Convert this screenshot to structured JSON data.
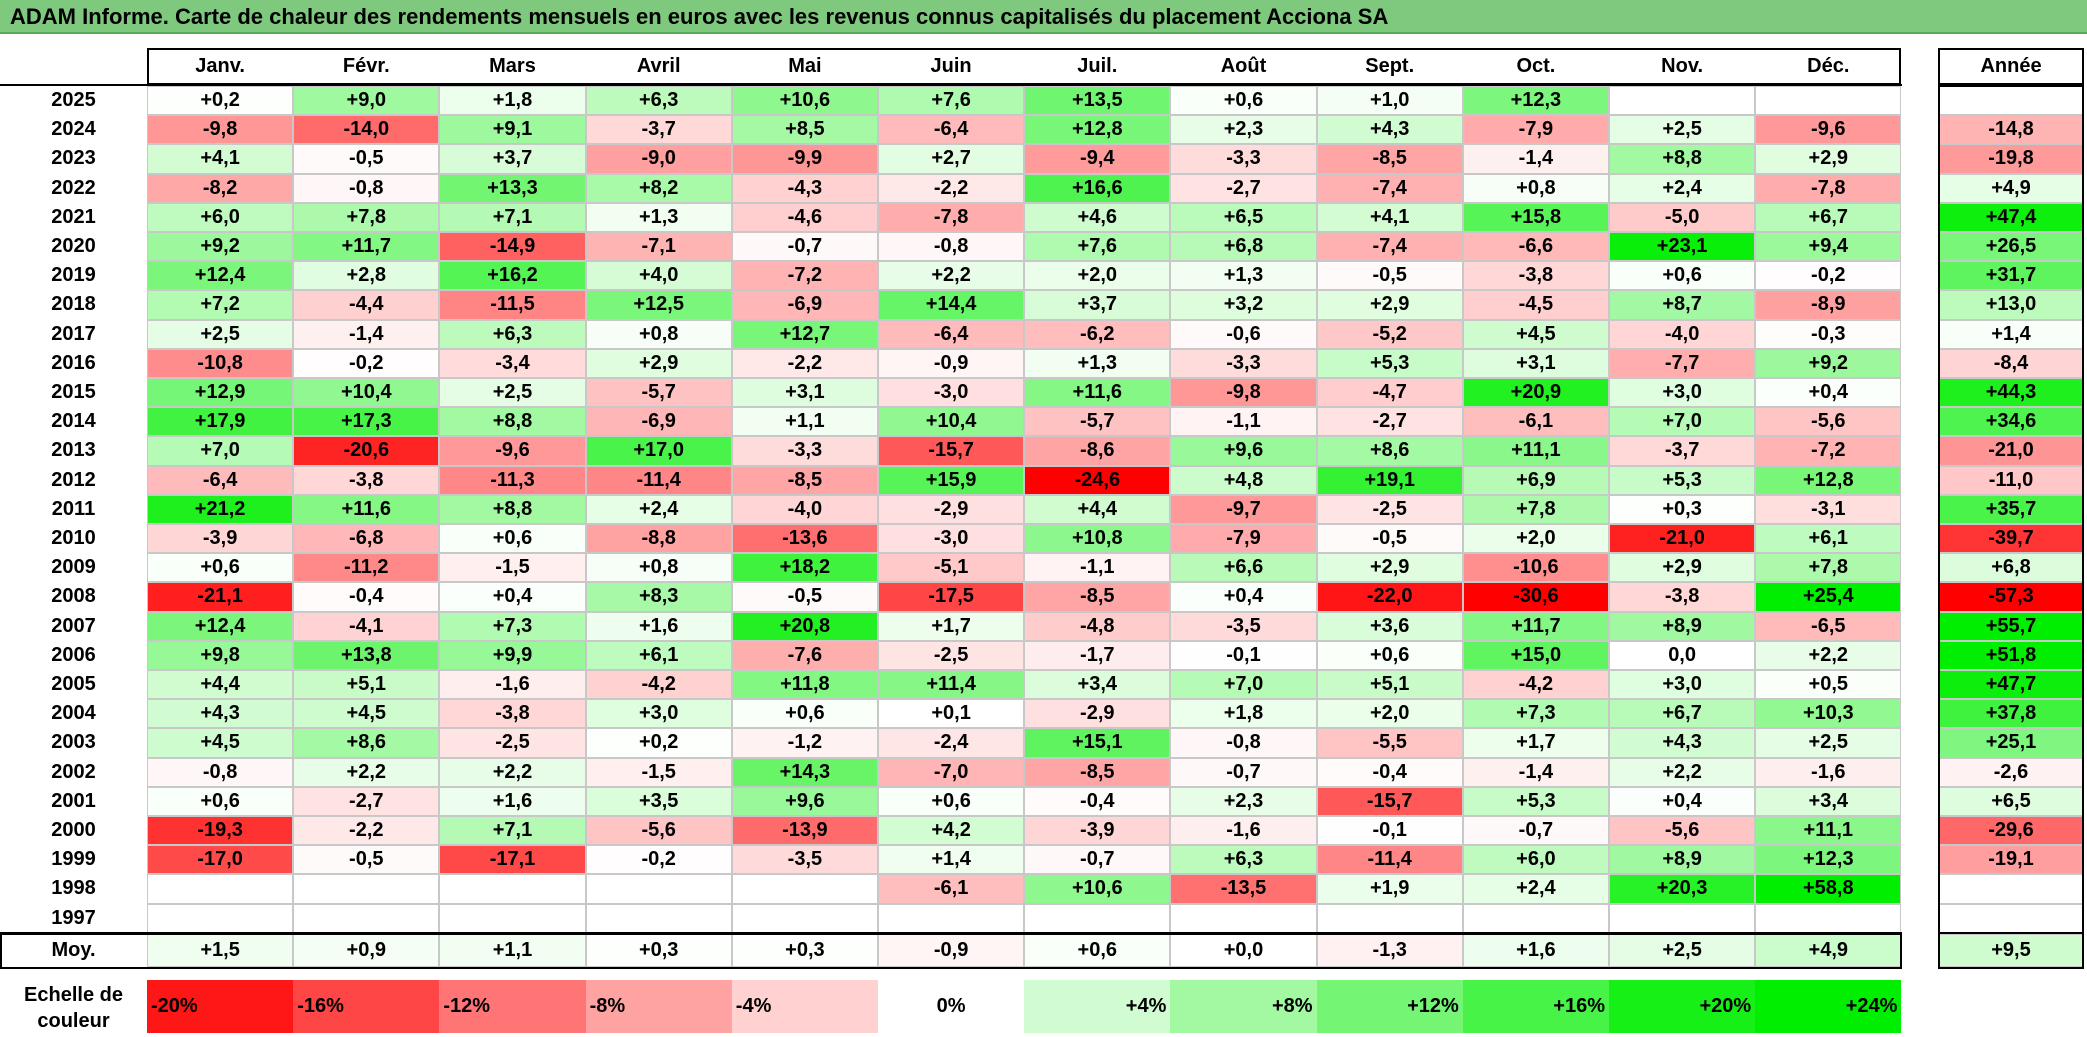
{
  "title": "ADAM Informe. Carte de chaleur des rendements mensuels en euros avec les revenus connus capitalisés du placement Acciona SA",
  "chart_data": {
    "type": "heatmap",
    "title": "ADAM Informe. Carte de chaleur des rendements mensuels en euros avec les revenus connus capitalisés du placement Acciona SA",
    "months": [
      "Janv.",
      "Févr.",
      "Mars",
      "Avril",
      "Mai",
      "Juin",
      "Juil.",
      "Août",
      "Sept.",
      "Oct.",
      "Nov.",
      "Déc."
    ],
    "annual_label": "Année",
    "rows": [
      {
        "year": "2025",
        "values": [
          "+0,2",
          "+9,0",
          "+1,8",
          "+6,3",
          "+10,6",
          "+7,6",
          "+13,5",
          "+0,6",
          "+1,0",
          "+12,3",
          "",
          ""
        ],
        "annual": ""
      },
      {
        "year": "2024",
        "values": [
          "-9,8",
          "-14,0",
          "+9,1",
          "-3,7",
          "+8,5",
          "-6,4",
          "+12,8",
          "+2,3",
          "+4,3",
          "-7,9",
          "+2,5",
          "-9,6"
        ],
        "annual": "-14,8"
      },
      {
        "year": "2023",
        "values": [
          "+4,1",
          "-0,5",
          "+3,7",
          "-9,0",
          "-9,9",
          "+2,7",
          "-9,4",
          "-3,3",
          "-8,5",
          "-1,4",
          "+8,8",
          "+2,9"
        ],
        "annual": "-19,8"
      },
      {
        "year": "2022",
        "values": [
          "-8,2",
          "-0,8",
          "+13,3",
          "+8,2",
          "-4,3",
          "-2,2",
          "+16,6",
          "-2,7",
          "-7,4",
          "+0,8",
          "+2,4",
          "-7,8"
        ],
        "annual": "+4,9"
      },
      {
        "year": "2021",
        "values": [
          "+6,0",
          "+7,8",
          "+7,1",
          "+1,3",
          "-4,6",
          "-7,8",
          "+4,6",
          "+6,5",
          "+4,1",
          "+15,8",
          "-5,0",
          "+6,7"
        ],
        "annual": "+47,4"
      },
      {
        "year": "2020",
        "values": [
          "+9,2",
          "+11,7",
          "-14,9",
          "-7,1",
          "-0,7",
          "-0,8",
          "+7,6",
          "+6,8",
          "-7,4",
          "-6,6",
          "+23,1",
          "+9,4"
        ],
        "annual": "+26,5"
      },
      {
        "year": "2019",
        "values": [
          "+12,4",
          "+2,8",
          "+16,2",
          "+4,0",
          "-7,2",
          "+2,2",
          "+2,0",
          "+1,3",
          "-0,5",
          "-3,8",
          "+0,6",
          "-0,2"
        ],
        "annual": "+31,7"
      },
      {
        "year": "2018",
        "values": [
          "+7,2",
          "-4,4",
          "-11,5",
          "+12,5",
          "-6,9",
          "+14,4",
          "+3,7",
          "+3,2",
          "+2,9",
          "-4,5",
          "+8,7",
          "-8,9"
        ],
        "annual": "+13,0"
      },
      {
        "year": "2017",
        "values": [
          "+2,5",
          "-1,4",
          "+6,3",
          "+0,8",
          "+12,7",
          "-6,4",
          "-6,2",
          "-0,6",
          "-5,2",
          "+4,5",
          "-4,0",
          "-0,3"
        ],
        "annual": "+1,4"
      },
      {
        "year": "2016",
        "values": [
          "-10,8",
          "-0,2",
          "-3,4",
          "+2,9",
          "-2,2",
          "-0,9",
          "+1,3",
          "-3,3",
          "+5,3",
          "+3,1",
          "-7,7",
          "+9,2"
        ],
        "annual": "-8,4"
      },
      {
        "year": "2015",
        "values": [
          "+12,9",
          "+10,4",
          "+2,5",
          "-5,7",
          "+3,1",
          "-3,0",
          "+11,6",
          "-9,8",
          "-4,7",
          "+20,9",
          "+3,0",
          "+0,4"
        ],
        "annual": "+44,3"
      },
      {
        "year": "2014",
        "values": [
          "+17,9",
          "+17,3",
          "+8,8",
          "-6,9",
          "+1,1",
          "+10,4",
          "-5,7",
          "-1,1",
          "-2,7",
          "-6,1",
          "+7,0",
          "-5,6"
        ],
        "annual": "+34,6"
      },
      {
        "year": "2013",
        "values": [
          "+7,0",
          "-20,6",
          "-9,6",
          "+17,0",
          "-3,3",
          "-15,7",
          "-8,6",
          "+9,6",
          "+8,6",
          "+11,1",
          "-3,7",
          "-7,2"
        ],
        "annual": "-21,0"
      },
      {
        "year": "2012",
        "values": [
          "-6,4",
          "-3,8",
          "-11,3",
          "-11,4",
          "-8,5",
          "+15,9",
          "-24,6",
          "+4,8",
          "+19,1",
          "+6,9",
          "+5,3",
          "+12,8"
        ],
        "annual": "-11,0"
      },
      {
        "year": "2011",
        "values": [
          "+21,2",
          "+11,6",
          "+8,8",
          "+2,4",
          "-4,0",
          "-2,9",
          "+4,4",
          "-9,7",
          "-2,5",
          "+7,8",
          "+0,3",
          "-3,1"
        ],
        "annual": "+35,7"
      },
      {
        "year": "2010",
        "values": [
          "-3,9",
          "-6,8",
          "+0,6",
          "-8,8",
          "-13,6",
          "-3,0",
          "+10,8",
          "-7,9",
          "-0,5",
          "+2,0",
          "-21,0",
          "+6,1"
        ],
        "annual": "-39,7"
      },
      {
        "year": "2009",
        "values": [
          "+0,6",
          "-11,2",
          "-1,5",
          "+0,8",
          "+18,2",
          "-5,1",
          "-1,1",
          "+6,6",
          "+2,9",
          "-10,6",
          "+2,9",
          "+7,8"
        ],
        "annual": "+6,8"
      },
      {
        "year": "2008",
        "values": [
          "-21,1",
          "-0,4",
          "+0,4",
          "+8,3",
          "-0,5",
          "-17,5",
          "-8,5",
          "+0,4",
          "-22,0",
          "-30,6",
          "-3,8",
          "+25,4"
        ],
        "annual": "-57,3"
      },
      {
        "year": "2007",
        "values": [
          "+12,4",
          "-4,1",
          "+7,3",
          "+1,6",
          "+20,8",
          "+1,7",
          "-4,8",
          "-3,5",
          "+3,6",
          "+11,7",
          "+8,9",
          "-6,5"
        ],
        "annual": "+55,7"
      },
      {
        "year": "2006",
        "values": [
          "+9,8",
          "+13,8",
          "+9,9",
          "+6,1",
          "-7,6",
          "-2,5",
          "-1,7",
          "-0,1",
          "+0,6",
          "+15,0",
          "0,0",
          "+2,2"
        ],
        "annual": "+51,8"
      },
      {
        "year": "2005",
        "values": [
          "+4,4",
          "+5,1",
          "-1,6",
          "-4,2",
          "+11,8",
          "+11,4",
          "+3,4",
          "+7,0",
          "+5,1",
          "-4,2",
          "+3,0",
          "+0,5"
        ],
        "annual": "+47,7"
      },
      {
        "year": "2004",
        "values": [
          "+4,3",
          "+4,5",
          "-3,8",
          "+3,0",
          "+0,6",
          "+0,1",
          "-2,9",
          "+1,8",
          "+2,0",
          "+7,3",
          "+6,7",
          "+10,3"
        ],
        "annual": "+37,8"
      },
      {
        "year": "2003",
        "values": [
          "+4,5",
          "+8,6",
          "-2,5",
          "+0,2",
          "-1,2",
          "-2,4",
          "+15,1",
          "-0,8",
          "-5,5",
          "+1,7",
          "+4,3",
          "+2,5"
        ],
        "annual": "+25,1"
      },
      {
        "year": "2002",
        "values": [
          "-0,8",
          "+2,2",
          "+2,2",
          "-1,5",
          "+14,3",
          "-7,0",
          "-8,5",
          "-0,7",
          "-0,4",
          "-1,4",
          "+2,2",
          "-1,6"
        ],
        "annual": "-2,6"
      },
      {
        "year": "2001",
        "values": [
          "+0,6",
          "-2,7",
          "+1,6",
          "+3,5",
          "+9,6",
          "+0,6",
          "-0,4",
          "+2,3",
          "-15,7",
          "+5,3",
          "+0,4",
          "+3,4"
        ],
        "annual": "+6,5"
      },
      {
        "year": "2000",
        "values": [
          "-19,3",
          "-2,2",
          "+7,1",
          "-5,6",
          "-13,9",
          "+4,2",
          "-3,9",
          "-1,6",
          "-0,1",
          "-0,7",
          "-5,6",
          "+11,1"
        ],
        "annual": "-29,6"
      },
      {
        "year": "1999",
        "values": [
          "-17,0",
          "-0,5",
          "-17,1",
          "-0,2",
          "-3,5",
          "+1,4",
          "-0,7",
          "+6,3",
          "-11,4",
          "+6,0",
          "+8,9",
          "+12,3"
        ],
        "annual": "-19,1"
      },
      {
        "year": "1998",
        "values": [
          "",
          "",
          "",
          "",
          "",
          "-6,1",
          "+10,6",
          "-13,5",
          "+1,9",
          "+2,4",
          "+20,3",
          "+58,8"
        ],
        "annual": ""
      },
      {
        "year": "1997",
        "values": [
          "",
          "",
          "",
          "",
          "",
          "",
          "",
          "",
          "",
          "",
          "",
          ""
        ],
        "annual": ""
      }
    ],
    "average": {
      "label": "Moy.",
      "values": [
        "+1,5",
        "+0,9",
        "+1,1",
        "+0,3",
        "+0,3",
        "-0,9",
        "+0,6",
        "+0,0",
        "-1,3",
        "+1,6",
        "+2,5",
        "+4,9"
      ],
      "annual": "+9,5"
    },
    "scale": {
      "label_line1": "Echelle de",
      "label_line2": "couleur",
      "steps": [
        "-20%",
        "-16%",
        "-12%",
        "-8%",
        "-4%",
        "0%",
        "+4%",
        "+8%",
        "+12%",
        "+16%",
        "+20%",
        "+24%"
      ]
    },
    "colors": {
      "negative_max": "#ff0000",
      "neutral": "#ffffff",
      "positive_max": "#00ee00",
      "title_bg": "#7ec97e"
    }
  }
}
